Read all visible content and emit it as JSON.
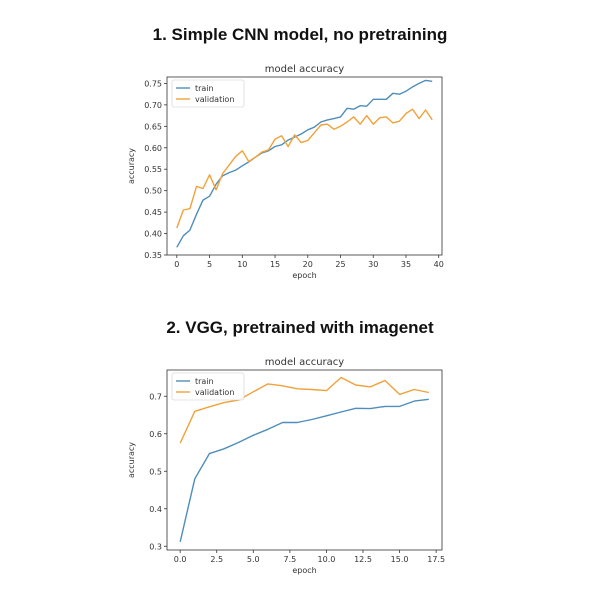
{
  "headings": [
    "1. Simple CNN model, no pretraining",
    "2. VGG, pretrained with imagenet"
  ],
  "colors": {
    "train": "#4f8dba",
    "validation": "#f0a23a"
  },
  "chart_data": [
    {
      "type": "line",
      "title": "model accuracy",
      "xlabel": "epoch",
      "ylabel": "accuracy",
      "xlim": [
        -1.5,
        40.5
      ],
      "ylim": [
        0.35,
        0.765
      ],
      "xticks": [
        0,
        5,
        10,
        15,
        20,
        25,
        30,
        35,
        40
      ],
      "yticks": [
        0.35,
        0.4,
        0.45,
        0.5,
        0.55,
        0.6,
        0.65,
        0.7,
        0.75
      ],
      "yticklabels": [
        "0.35",
        "0.40",
        "0.45",
        "0.50",
        "0.55",
        "0.60",
        "0.65",
        "0.70",
        "0.75"
      ],
      "legend": "top-left",
      "grid": false,
      "x": [
        0,
        1,
        2,
        3,
        4,
        5,
        6,
        7,
        8,
        9,
        10,
        11,
        12,
        13,
        14,
        15,
        16,
        17,
        18,
        19,
        20,
        21,
        22,
        23,
        24,
        25,
        26,
        27,
        28,
        29,
        30,
        31,
        32,
        33,
        34,
        35,
        36,
        37,
        38,
        39
      ],
      "series": [
        {
          "name": "train",
          "values": [
            0.368,
            0.395,
            0.408,
            0.445,
            0.478,
            0.487,
            0.515,
            0.535,
            0.542,
            0.548,
            0.558,
            0.567,
            0.578,
            0.588,
            0.593,
            0.603,
            0.607,
            0.618,
            0.625,
            0.632,
            0.642,
            0.648,
            0.66,
            0.665,
            0.668,
            0.672,
            0.692,
            0.69,
            0.698,
            0.697,
            0.713,
            0.713,
            0.713,
            0.727,
            0.725,
            0.732,
            0.742,
            0.75,
            0.757,
            0.755
          ]
        },
        {
          "name": "validation",
          "values": [
            0.413,
            0.455,
            0.458,
            0.51,
            0.505,
            0.537,
            0.502,
            0.54,
            0.56,
            0.58,
            0.593,
            0.568,
            0.578,
            0.59,
            0.595,
            0.62,
            0.628,
            0.603,
            0.63,
            0.612,
            0.617,
            0.635,
            0.653,
            0.655,
            0.643,
            0.65,
            0.66,
            0.672,
            0.655,
            0.675,
            0.655,
            0.67,
            0.672,
            0.658,
            0.662,
            0.68,
            0.69,
            0.668,
            0.688,
            0.665
          ]
        }
      ]
    },
    {
      "type": "line",
      "title": "model accuracy",
      "xlabel": "epoch",
      "ylabel": "accuracy",
      "xlim": [
        -0.9,
        17.9
      ],
      "ylim": [
        0.29,
        0.77
      ],
      "xticks": [
        0,
        2.5,
        5,
        7.5,
        10,
        12.5,
        15,
        17.5
      ],
      "xticklabels": [
        "0.0",
        "2.5",
        "5.0",
        "7.5",
        "10.0",
        "12.5",
        "15.0",
        "17.5"
      ],
      "yticks": [
        0.3,
        0.4,
        0.5,
        0.6,
        0.7
      ],
      "yticklabels": [
        "0.3",
        "0.4",
        "0.5",
        "0.6",
        "0.7"
      ],
      "legend": "top-left",
      "grid": false,
      "x": [
        0,
        1,
        2,
        3,
        4,
        5,
        6,
        7,
        8,
        9,
        10,
        11,
        12,
        13,
        14,
        15,
        16,
        17
      ],
      "series": [
        {
          "name": "train",
          "values": [
            0.312,
            0.48,
            0.547,
            0.56,
            0.577,
            0.596,
            0.612,
            0.63,
            0.63,
            0.638,
            0.648,
            0.658,
            0.668,
            0.667,
            0.673,
            0.673,
            0.687,
            0.692
          ]
        },
        {
          "name": "validation",
          "values": [
            0.575,
            0.66,
            0.672,
            0.683,
            0.69,
            0.712,
            0.733,
            0.728,
            0.72,
            0.718,
            0.715,
            0.75,
            0.73,
            0.725,
            0.742,
            0.705,
            0.718,
            0.71
          ]
        }
      ]
    }
  ]
}
